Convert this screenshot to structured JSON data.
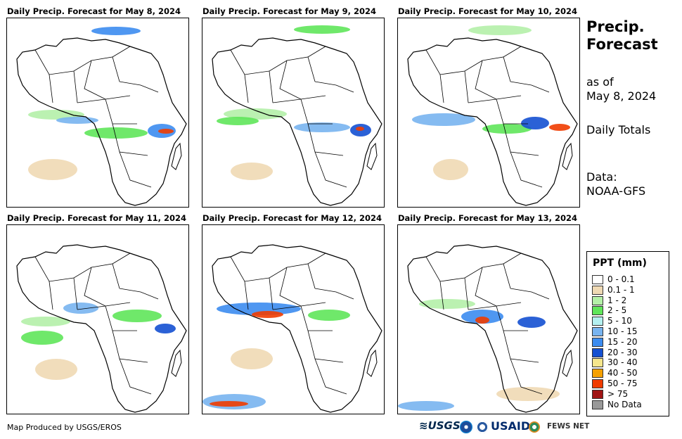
{
  "panels": [
    {
      "title": "Daily Precip. Forecast for May 8, 2024"
    },
    {
      "title": "Daily Precip. Forecast for May 9, 2024"
    },
    {
      "title": "Daily Precip. Forecast for May 10, 2024"
    },
    {
      "title": "Daily Precip. Forecast for May 11, 2024"
    },
    {
      "title": "Daily Precip. Forecast for May 12, 2024"
    },
    {
      "title": "Daily Precip. Forecast for May 13, 2024"
    }
  ],
  "sidebar": {
    "title_line1": "Precip.",
    "title_line2": "Forecast",
    "asof_line1": "as of",
    "asof_line2": "May 8, 2024",
    "totals": "Daily Totals",
    "data_label": "Data:",
    "data_source": "NOAA-GFS"
  },
  "legend": {
    "title": "PPT (mm)",
    "items": [
      {
        "label": "0 - 0.1",
        "color": "#ffffff"
      },
      {
        "label": "0.1 - 1",
        "color": "#efd9b4"
      },
      {
        "label": "1 - 2",
        "color": "#b4f0a8"
      },
      {
        "label": "2 - 5",
        "color": "#5fe65a"
      },
      {
        "label": "5 - 10",
        "color": "#b4f0f0"
      },
      {
        "label": "10 - 15",
        "color": "#78b4f0"
      },
      {
        "label": "15 - 20",
        "color": "#3c8cf0"
      },
      {
        "label": "20 - 30",
        "color": "#1450d2"
      },
      {
        "label": "30 - 40",
        "color": "#f5e68c"
      },
      {
        "label": "40 - 50",
        "color": "#f5a000"
      },
      {
        "label": "50 - 75",
        "color": "#f03c00"
      },
      {
        "label": "> 75",
        "color": "#a01414"
      },
      {
        "label": "No Data",
        "color": "#999999"
      }
    ]
  },
  "footer": {
    "credit": "Map Produced by USGS/EROS",
    "logo_usgs": "≋USGS",
    "logo_usaid": "USAID",
    "logo_fews": "FEWS NET"
  }
}
